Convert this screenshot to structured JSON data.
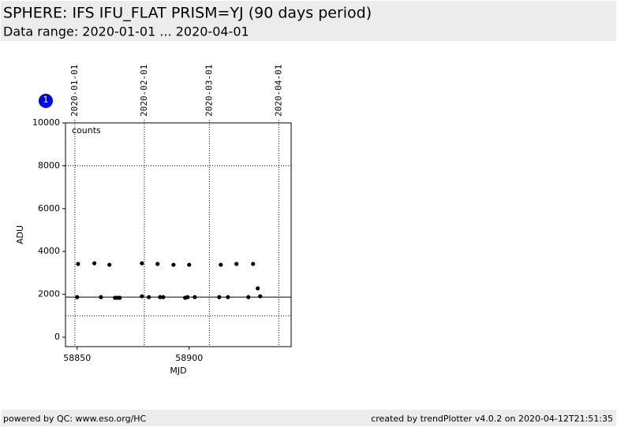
{
  "header": {
    "title": "SPHERE: IFS IFU_FLAT PRISM=YJ (90 days period)",
    "subtitle": "Data range: 2020-01-01 ... 2020-04-01"
  },
  "chart_data": {
    "type": "scatter",
    "badge": "1",
    "annotation": "counts",
    "ylabel": "ADU",
    "xlabel": "MJD",
    "color": "#000000",
    "x": [
      58850,
      58850.4,
      58857.7,
      58860.6,
      58864.4,
      58866.9,
      58868,
      58869,
      58878.9,
      58878.9,
      58882,
      58885.9,
      58887,
      58888.4,
      58893,
      58898.2,
      58899.3,
      58900,
      58902.5,
      58913.4,
      58914.1,
      58917.3,
      58921.1,
      58926.4,
      58928.5,
      58930.6,
      58931.7
    ],
    "values": [
      1870,
      3420,
      3450,
      1870,
      3380,
      1840,
      1840,
      1840,
      3450,
      1910,
      1870,
      3420,
      1870,
      1870,
      3380,
      1840,
      1870,
      3380,
      1870,
      1870,
      3380,
      1870,
      3420,
      1870,
      3420,
      2280,
      1910
    ],
    "xlim": [
      58844.8,
      58945.5
    ],
    "ylim": [
      -440,
      10000
    ],
    "xticks": [
      58850,
      58900
    ],
    "yticks": [
      0,
      2000,
      4000,
      6000,
      8000,
      10000
    ],
    "x2ticks": [
      {
        "value": 58849,
        "label": "2020-01-01"
      },
      {
        "value": 58880,
        "label": "2020-02-01"
      },
      {
        "value": 58909,
        "label": "2020-03-01"
      },
      {
        "value": 58940,
        "label": "2020-04-01"
      }
    ],
    "hlines": [
      {
        "value": 8000,
        "style": "dotted"
      },
      {
        "value": 1000,
        "style": "dotted"
      },
      {
        "value": 1870,
        "style": "solid"
      }
    ]
  },
  "footer": {
    "left": "powered by QC: www.eso.org/HC",
    "right": "created by trendPlotter v4.0.2 on 2020-04-12T21:51:35"
  }
}
